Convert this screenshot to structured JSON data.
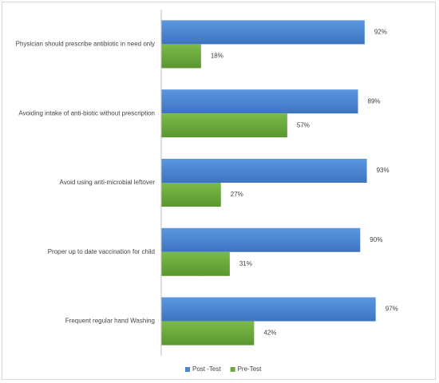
{
  "chart_data": {
    "type": "bar",
    "orientation": "horizontal",
    "title": "",
    "xlabel": "",
    "ylabel": "",
    "xlim": [
      0,
      100
    ],
    "grid": false,
    "legend_position": "bottom",
    "categories": [
      "Physician should prescribe antibiotic in need only",
      "Avoiding intake of anti-biotic without prescription",
      "Avoid using anti-microbial leftover",
      "Proper up to date vaccination for child",
      "Frequent regular hand Washing"
    ],
    "series": [
      {
        "name": "Post -Test",
        "color": "#4a86d4",
        "values": [
          92,
          89,
          93,
          90,
          97
        ],
        "labels": [
          "92%",
          "89%",
          "93%",
          "90%",
          "97%"
        ]
      },
      {
        "name": "Pre-Test",
        "color": "#6aaa3a",
        "values": [
          18,
          57,
          27,
          31,
          42
        ],
        "labels": [
          "18%",
          "57%",
          "27%",
          "31%",
          "42%"
        ]
      }
    ]
  }
}
